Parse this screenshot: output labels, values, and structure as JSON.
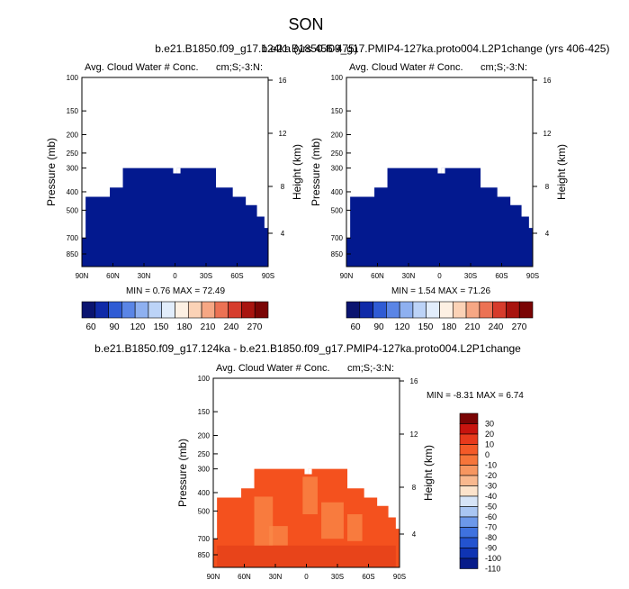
{
  "title": "SON",
  "chart_data": [
    {
      "type": "heatmap",
      "subtitle": "b.e21.B1850.f09_g17.124ka (yrs 456-475)",
      "left_label": "Avg. Cloud Water # Conc.",
      "right_label": "cm;S;-3:N:",
      "ylabel": "Pressure (mb)",
      "ylabel_right": "Height (km)",
      "x_ticks": [
        "90N",
        "60N",
        "30N",
        "0",
        "30S",
        "60S",
        "90S"
      ],
      "y_ticks": [
        "100",
        "150",
        "200",
        "250",
        "300",
        "400",
        "500",
        "700",
        "850"
      ],
      "y_ticks_right": [
        "16",
        "12",
        "8",
        "4"
      ],
      "stats": "MIN =  0.76  MAX = 72.49",
      "colorbar_labels": [
        "60",
        "90",
        "120",
        "150",
        "180",
        "210",
        "240",
        "270"
      ],
      "fill_color": "#03198f"
    },
    {
      "type": "heatmap",
      "subtitle": "b.e21.B1850.f09_g17.PMIP4-127ka.proto004.L2P1change (yrs 406-425)",
      "left_label": "Avg. Cloud Water # Conc.",
      "right_label": "cm;S;-3:N:",
      "ylabel": "Pressure (mb)",
      "ylabel_right": "Height (km)",
      "x_ticks": [
        "90N",
        "60N",
        "30N",
        "0",
        "30S",
        "60S",
        "90S"
      ],
      "y_ticks": [
        "100",
        "150",
        "200",
        "250",
        "300",
        "400",
        "500",
        "700",
        "850"
      ],
      "y_ticks_right": [
        "16",
        "12",
        "8",
        "4"
      ],
      "stats": "MIN =  1.54  MAX = 71.26",
      "colorbar_labels": [
        "60",
        "90",
        "120",
        "150",
        "180",
        "210",
        "240",
        "270"
      ],
      "fill_color": "#03198f"
    },
    {
      "type": "heatmap",
      "subtitle": "b.e21.B1850.f09_g17.124ka - b.e21.B1850.f09_g17.PMIP4-127ka.proto004.L2P1change",
      "left_label": "Avg. Cloud Water # Conc.",
      "right_label": "cm;S;-3:N:",
      "ylabel": "Pressure (mb)",
      "ylabel_right": "Height (km)",
      "x_ticks": [
        "90N",
        "60N",
        "30N",
        "0",
        "30S",
        "60S",
        "90S"
      ],
      "y_ticks": [
        "100",
        "150",
        "200",
        "250",
        "300",
        "400",
        "500",
        "700",
        "850"
      ],
      "y_ticks_right": [
        "16",
        "12",
        "8",
        "4"
      ],
      "stats": "MIN = -8.31  MAX =  6.74",
      "colorbar_labels": [
        "30",
        "20",
        "10",
        "0",
        "-10",
        "-20",
        "-30",
        "-40",
        "-50",
        "-60",
        "-70",
        "-80",
        "-90",
        "-100",
        "-110"
      ],
      "fill_color": "#f4511e"
    }
  ],
  "colors": {
    "main_scale": [
      "#0a1470",
      "#0f2aa8",
      "#2f5bd4",
      "#5a85e6",
      "#8eb0f0",
      "#bcd3f7",
      "#e2edfb",
      "#fdf0e3",
      "#fbd2b6",
      "#f6a784",
      "#ec7254",
      "#d63c2c",
      "#a8140f",
      "#7a0404"
    ],
    "diff_scale": [
      "#7a0404",
      "#c8140e",
      "#e83a1c",
      "#f45a28",
      "#f6753a",
      "#f79660",
      "#f9b88e",
      "#fde3cb",
      "#d6e4f7",
      "#a9c6f3",
      "#6c98ea",
      "#3f72df",
      "#2353cf",
      "#0f34b3",
      "#071c8a"
    ]
  }
}
